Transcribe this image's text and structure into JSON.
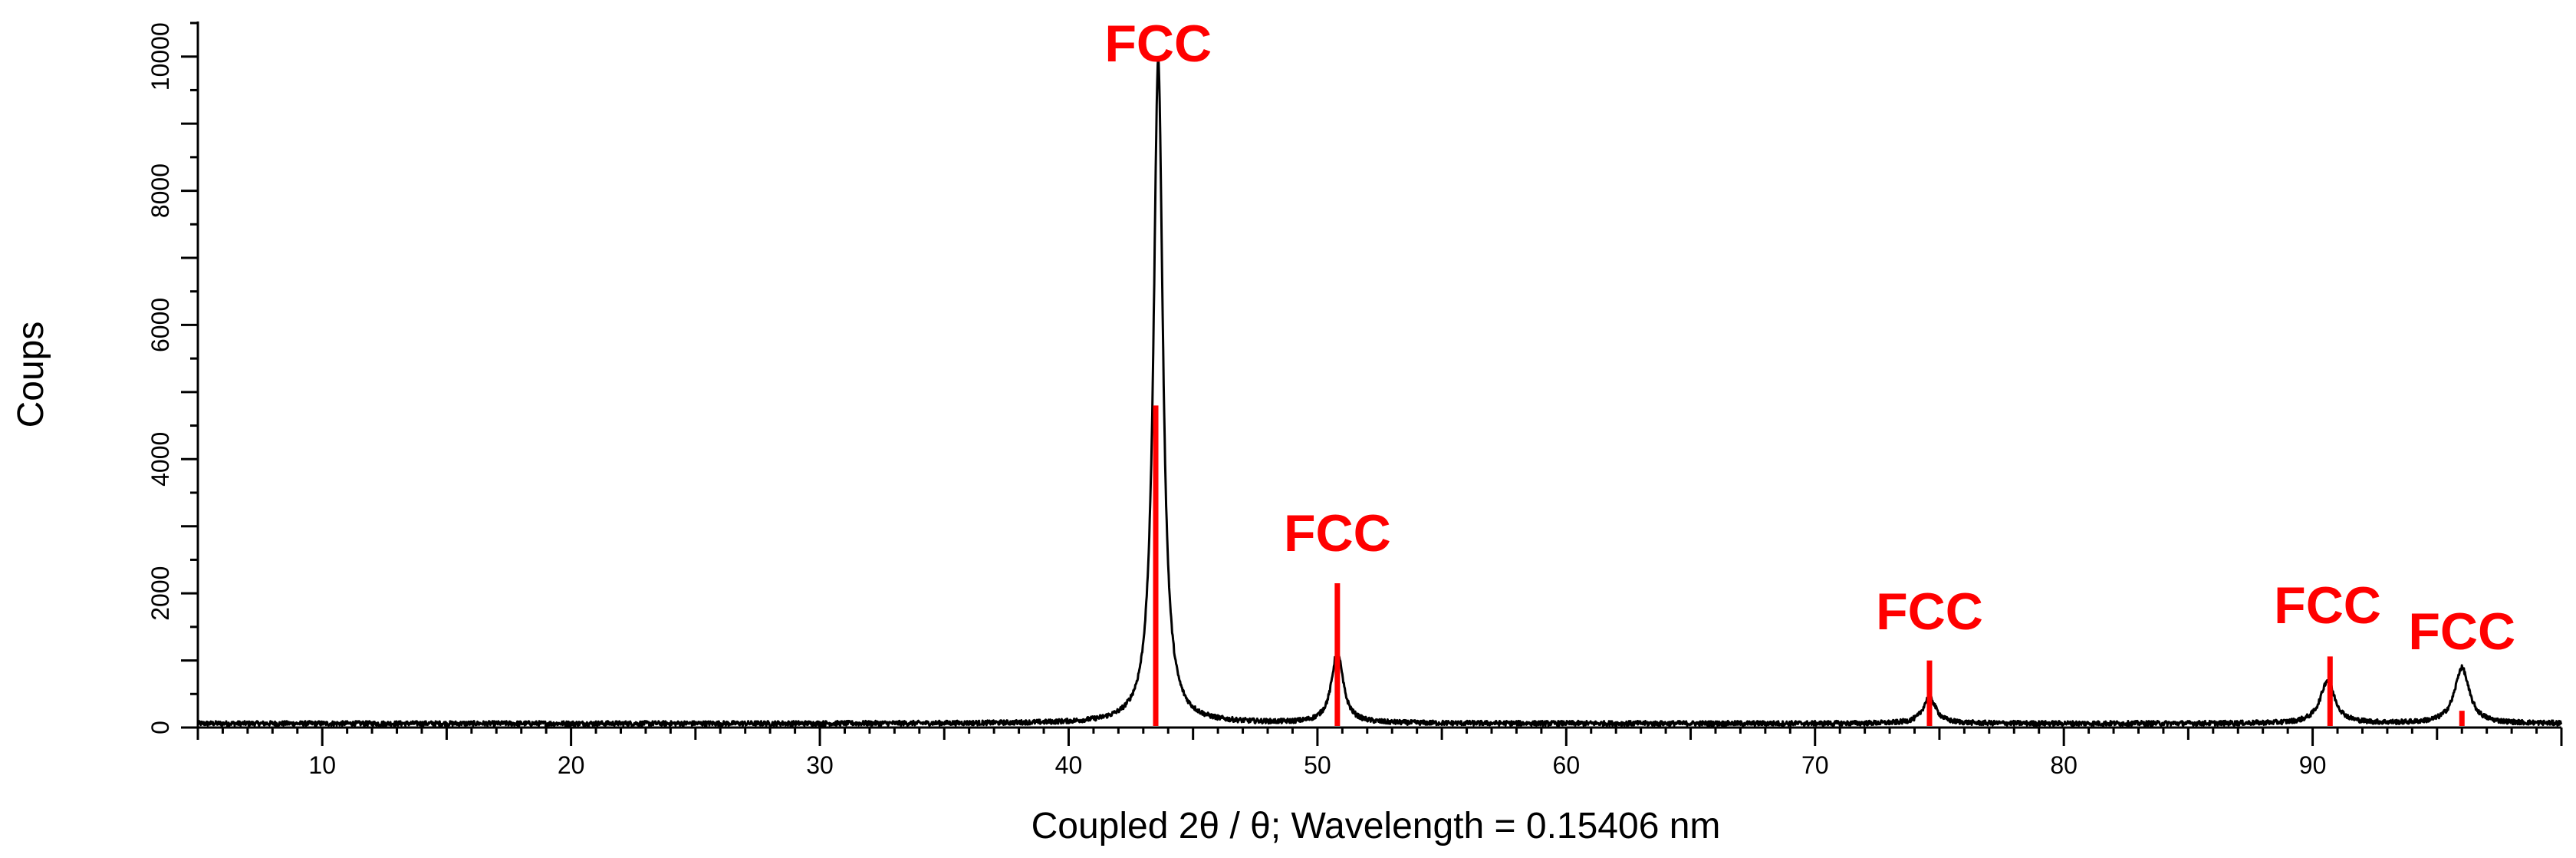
{
  "chart_data": {
    "type": "line",
    "xlabel": "Coupled 2θ / θ; Wavelength = 0.15406 nm",
    "ylabel": "Coups",
    "xlim": [
      5,
      100
    ],
    "ylim": [
      0,
      10500
    ],
    "x_ticks": [
      10,
      20,
      30,
      40,
      50,
      60,
      70,
      80,
      90
    ],
    "y_ticks": [
      0,
      2000,
      4000,
      6000,
      8000,
      10000
    ],
    "grid": false,
    "colors": {
      "line": "#000000",
      "reference": "#ff0000"
    },
    "series": [
      {
        "type": "line",
        "baseline": 60,
        "peaks": [
          {
            "x": 43.6,
            "y": 9900,
            "fwhm": 0.45
          },
          {
            "x": 50.8,
            "y": 1070,
            "fwhm": 0.55
          },
          {
            "x": 74.6,
            "y": 400,
            "fwhm": 0.6
          },
          {
            "x": 90.6,
            "y": 640,
            "fwhm": 0.7
          },
          {
            "x": 96.0,
            "y": 830,
            "fwhm": 0.7
          }
        ]
      }
    ],
    "reference_lines": [
      {
        "x": 43.5,
        "y": 4800
      },
      {
        "x": 50.8,
        "y": 2150
      },
      {
        "x": 74.6,
        "y": 1000
      },
      {
        "x": 90.7,
        "y": 1060
      },
      {
        "x": 96.0,
        "y": 250
      }
    ],
    "annotations": [
      {
        "text": "FCC",
        "x": 43.6
      },
      {
        "text": "FCC",
        "x": 50.8
      },
      {
        "text": "FCC",
        "x": 74.6
      },
      {
        "text": "FCC",
        "x": 90.6
      },
      {
        "text": "FCC",
        "x": 96.0
      }
    ]
  }
}
